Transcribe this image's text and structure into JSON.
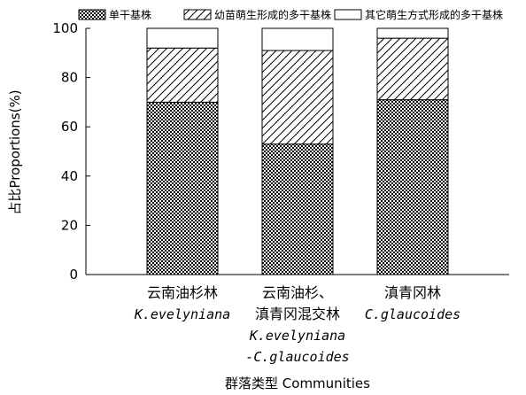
{
  "chart_data": {
    "type": "bar",
    "stacked": true,
    "categories": [
      {
        "zh": [
          "云南油杉林"
        ],
        "latin": [
          "K.evelyniana"
        ]
      },
      {
        "zh": [
          "云南油杉、",
          "滇青冈混交林"
        ],
        "latin": [
          "K.evelyniana",
          "-C.glaucoides"
        ]
      },
      {
        "zh": [
          "滇青冈林"
        ],
        "latin": [
          "C.glaucoides"
        ]
      }
    ],
    "series": [
      {
        "name": "单干基株",
        "pattern": "checker",
        "values": [
          70,
          53,
          71
        ]
      },
      {
        "name": "幼苗萌生形成的多干基株",
        "pattern": "hatch",
        "values": [
          22,
          38,
          25
        ]
      },
      {
        "name": "其它萌生方式形成的多干基株",
        "pattern": "blank",
        "values": [
          8,
          9,
          4
        ]
      }
    ],
    "ylabel": "占比Proportions(%)",
    "xlabel": "群落类型 Communities",
    "ylim": [
      0,
      100
    ],
    "yticks": [
      0,
      20,
      40,
      60,
      80,
      100
    ],
    "legend_position": "top",
    "grid": false
  }
}
